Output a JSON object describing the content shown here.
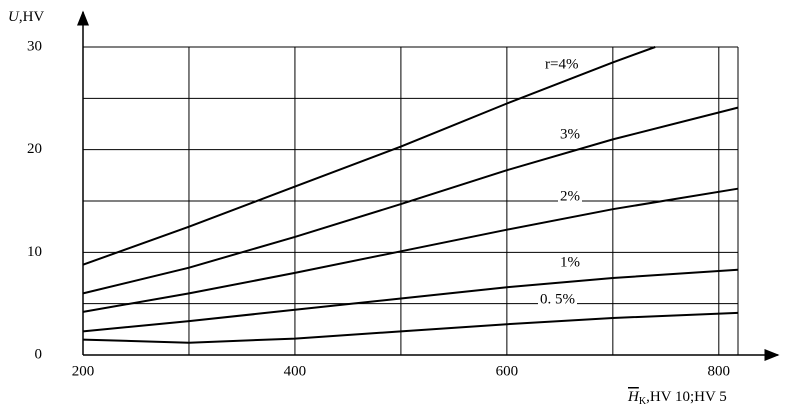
{
  "chart_data": {
    "type": "line",
    "y_label": {
      "symbol": "U",
      "text": ",HV"
    },
    "x_label": {
      "symbol": "H",
      "subscript": "K",
      "text": ",HV 10;HV 5"
    },
    "x": [
      200,
      300,
      400,
      500,
      600,
      700,
      818
    ],
    "xlim": [
      200,
      820
    ],
    "xticks": [
      200,
      400,
      600,
      800
    ],
    "xgrid": [
      200,
      300,
      400,
      500,
      600,
      700,
      800
    ],
    "ylim": [
      0,
      30
    ],
    "yticks": [
      0,
      10,
      20,
      30
    ],
    "ygrid": [
      0,
      5,
      10,
      15,
      20,
      25,
      30
    ],
    "grid": true,
    "series": [
      {
        "name": "r=4%",
        "color": "#000000",
        "x": [
          200,
          300,
          400,
          500,
          600,
          700,
          740
        ],
        "values": [
          8.8,
          12.5,
          16.4,
          20.3,
          24.5,
          28.5,
          30
        ]
      },
      {
        "name": "3%",
        "color": "#000000",
        "values": [
          6.0,
          8.5,
          11.5,
          14.7,
          18.0,
          21.0,
          24.1
        ]
      },
      {
        "name": "2%",
        "color": "#000000",
        "values": [
          4.2,
          6.0,
          8.0,
          10.1,
          12.2,
          14.2,
          16.2
        ]
      },
      {
        "name": "1%",
        "color": "#000000",
        "values": [
          2.3,
          3.3,
          4.4,
          5.5,
          6.6,
          7.5,
          8.3
        ]
      },
      {
        "name": "0. 5%",
        "color": "#000000",
        "values": [
          1.5,
          1.2,
          1.6,
          2.3,
          3.0,
          3.6,
          4.1
        ]
      }
    ]
  }
}
